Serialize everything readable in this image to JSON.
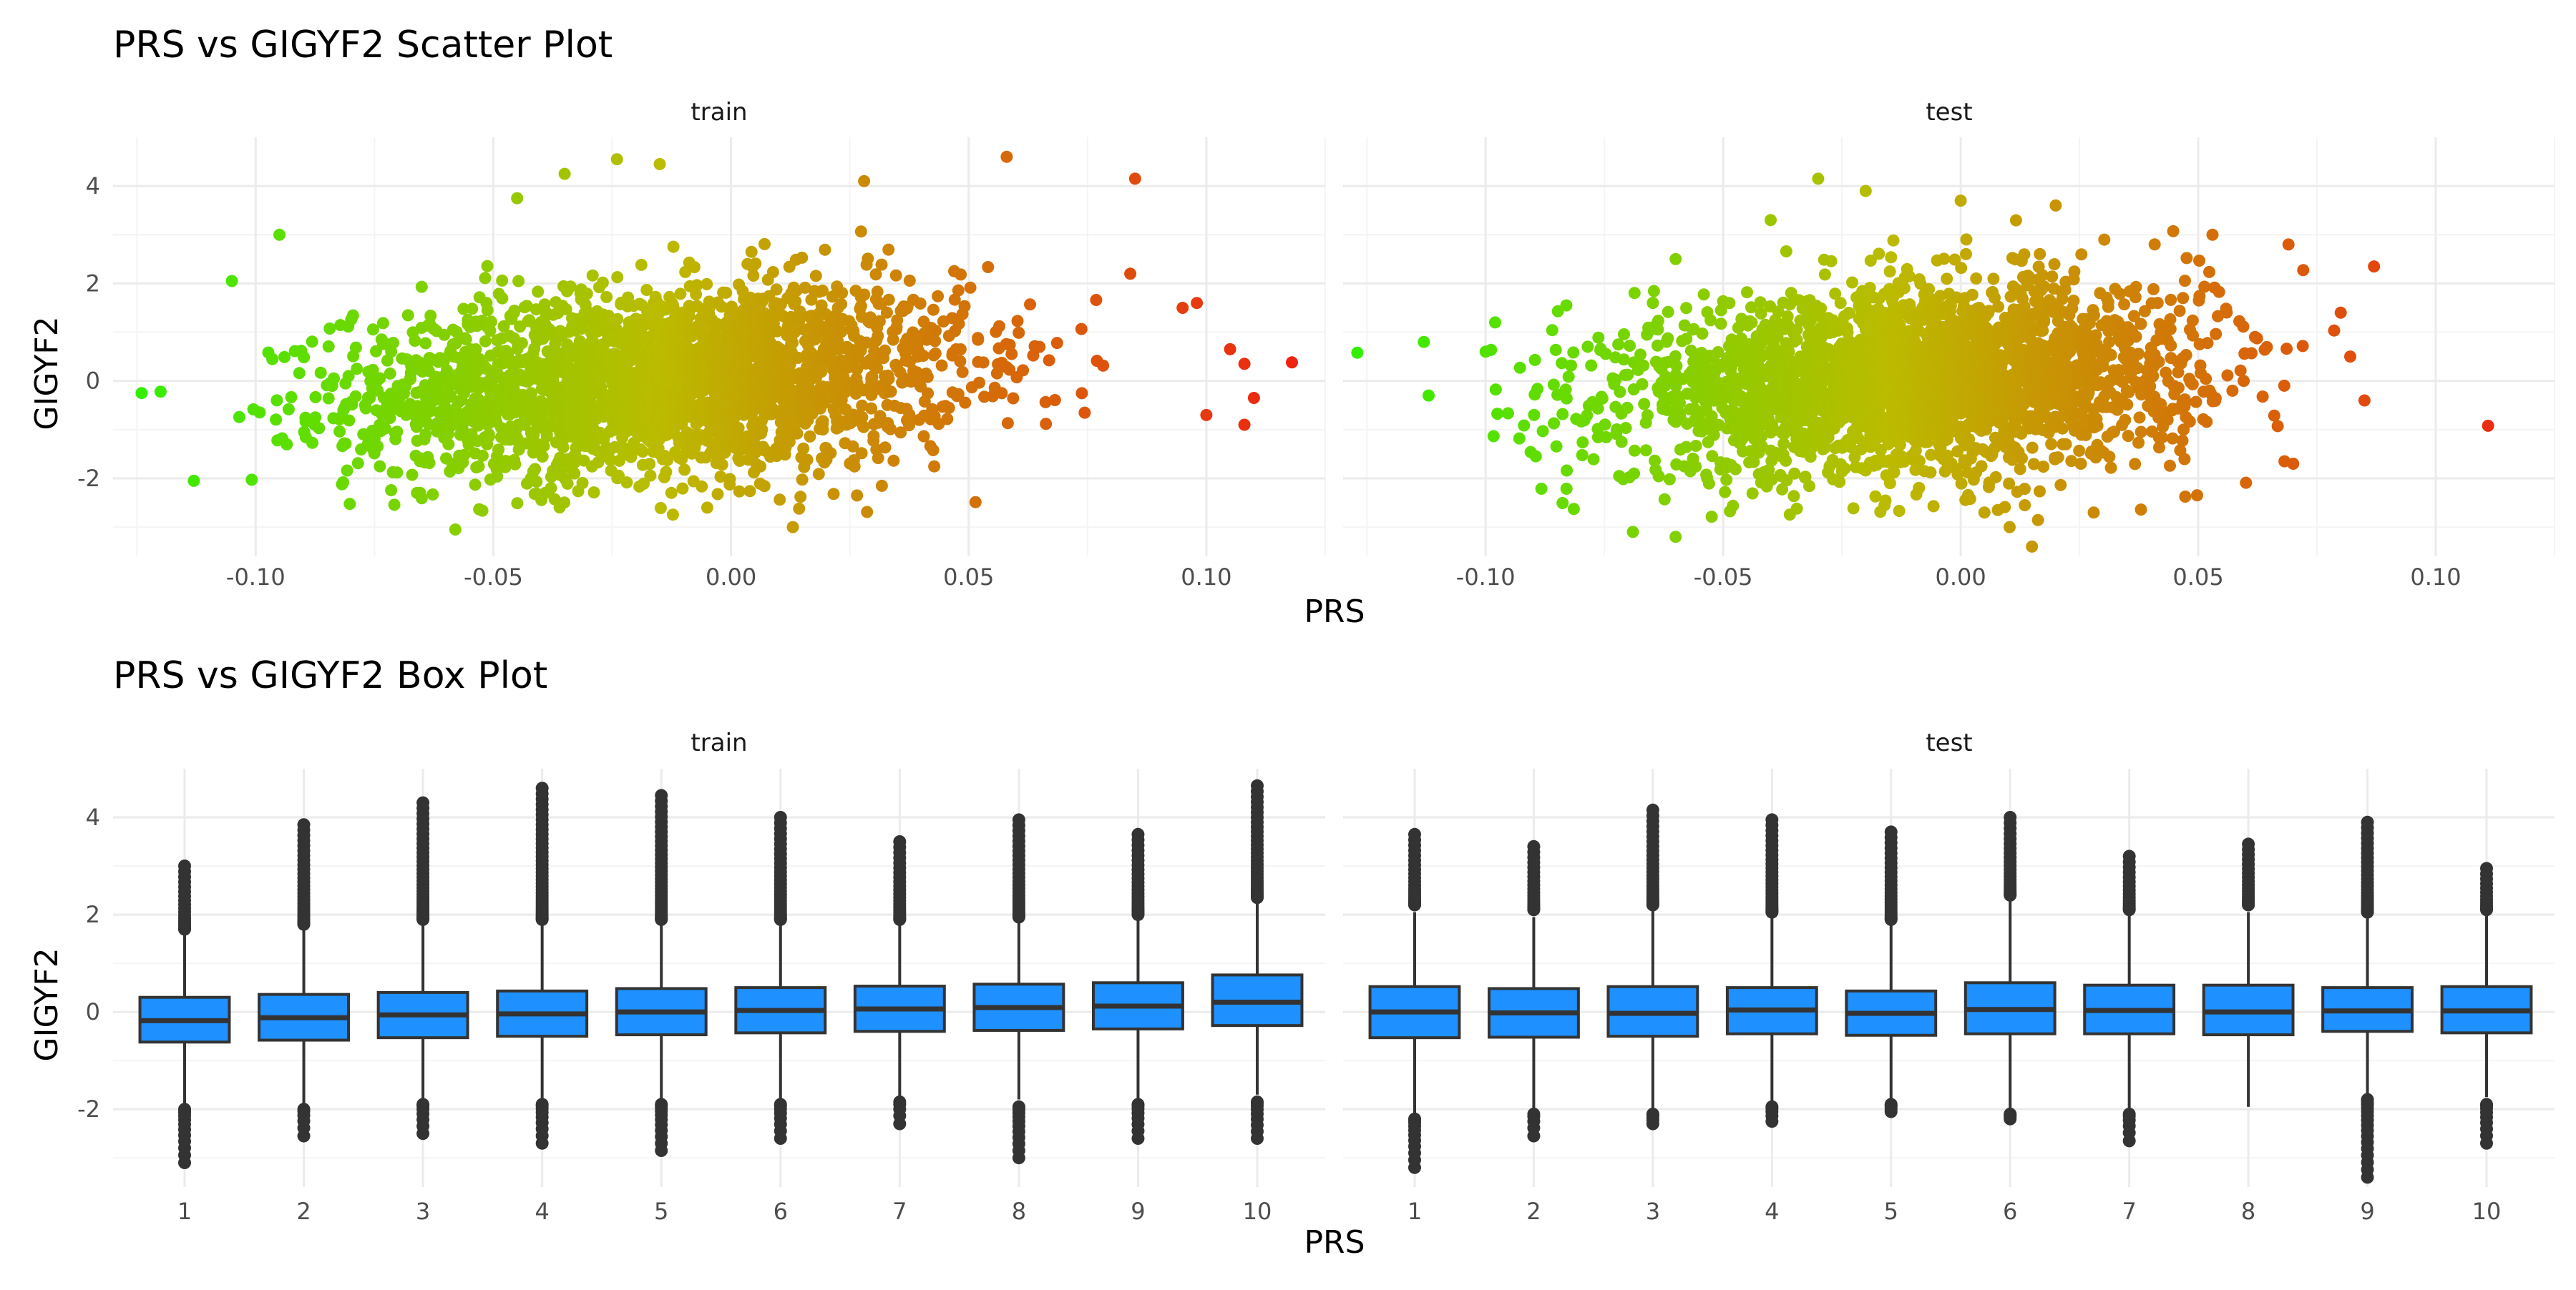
{
  "figure": {
    "scatter_title": "PRS vs GIGYF2 Scatter Plot",
    "box_title": "PRS vs GIGYF2 Box Plot"
  },
  "colors": {
    "low": "#33ee00",
    "mid": "#bbbb00",
    "high": "#ee2211",
    "box_fill": "#1e90ff",
    "box_stroke": "#333333",
    "grid_major": "#ebebeb",
    "grid_minor": "#f4f4f4",
    "text": "#000000",
    "tick_text": "#4d4d4d"
  },
  "chart_data": [
    {
      "type": "scatter",
      "title": "PRS vs GIGYF2 Scatter Plot",
      "xlabel": "PRS",
      "ylabel": "GIGYF2",
      "xlim": [
        -0.13,
        0.125
      ],
      "ylim": [
        -3.6,
        5.0
      ],
      "x_ticks": [
        -0.1,
        -0.05,
        0.0,
        0.05,
        0.1
      ],
      "x_tick_labels": [
        "-0.10",
        "-0.05",
        "0.00",
        "0.05",
        "0.10"
      ],
      "y_ticks": [
        -2,
        0,
        2,
        4
      ],
      "y_tick_labels": [
        "-2",
        "0",
        "2",
        "4"
      ],
      "color_scale": "gradient by PRS (green to red)",
      "grid": true,
      "facets": [
        {
          "label": "train",
          "x_center": -0.015,
          "x_sd": 0.032,
          "y_sd": 0.95,
          "core_halfwidth_x": 0.075,
          "core_halfwidth_y": 1.6,
          "extreme_points": [
            [
              -0.124,
              -0.25
            ],
            [
              -0.12,
              -0.22
            ],
            [
              -0.113,
              -2.05
            ],
            [
              -0.105,
              2.05
            ],
            [
              -0.095,
              3.0
            ],
            [
              -0.058,
              -3.05
            ],
            [
              -0.045,
              3.75
            ],
            [
              -0.035,
              4.25
            ],
            [
              -0.024,
              4.55
            ],
            [
              -0.015,
              4.45
            ],
            [
              -0.005,
              -2.6
            ],
            [
              0.013,
              -3.0
            ],
            [
              0.028,
              4.1
            ],
            [
              0.058,
              4.6
            ],
            [
              0.085,
              4.15
            ],
            [
              0.084,
              2.2
            ],
            [
              0.095,
              1.5
            ],
            [
              0.098,
              1.6
            ],
            [
              0.1,
              -0.7
            ],
            [
              0.105,
              0.65
            ],
            [
              0.108,
              -0.9
            ],
            [
              0.11,
              -0.35
            ],
            [
              0.108,
              0.35
            ],
            [
              0.118,
              0.38
            ]
          ]
        },
        {
          "label": "test",
          "x_center": -0.01,
          "x_sd": 0.03,
          "y_sd": 0.95,
          "core_halfwidth_x": 0.072,
          "core_halfwidth_y": 1.5,
          "extreme_points": [
            [
              -0.127,
              0.58
            ],
            [
              -0.113,
              0.8
            ],
            [
              -0.112,
              -0.3
            ],
            [
              -0.1,
              0.6
            ],
            [
              -0.098,
              1.2
            ],
            [
              -0.083,
              1.55
            ],
            [
              -0.069,
              -3.1
            ],
            [
              -0.06,
              -3.2
            ],
            [
              -0.06,
              2.5
            ],
            [
              -0.04,
              3.3
            ],
            [
              -0.03,
              4.15
            ],
            [
              -0.02,
              3.9
            ],
            [
              0.0,
              3.7
            ],
            [
              0.005,
              -2.7
            ],
            [
              0.02,
              3.6
            ],
            [
              0.015,
              -3.4
            ],
            [
              0.028,
              -2.7
            ],
            [
              0.053,
              3.0
            ],
            [
              0.069,
              2.8
            ],
            [
              0.07,
              -1.7
            ],
            [
              0.08,
              1.4
            ],
            [
              0.082,
              0.5
            ],
            [
              0.085,
              -0.4
            ],
            [
              0.087,
              2.35
            ],
            [
              0.111,
              -0.92
            ]
          ]
        }
      ]
    },
    {
      "type": "box",
      "title": "PRS vs GIGYF2 Box Plot",
      "xlabel": "PRS",
      "ylabel": "GIGYF2",
      "categories": [
        "1",
        "2",
        "3",
        "4",
        "5",
        "6",
        "7",
        "8",
        "9",
        "10"
      ],
      "ylim": [
        -3.6,
        5.0
      ],
      "y_ticks": [
        -2,
        0,
        2,
        4
      ],
      "y_tick_labels": [
        "-2",
        "0",
        "2",
        "4"
      ],
      "grid": true,
      "facets": [
        {
          "label": "train",
          "boxes": [
            {
              "q1": -0.62,
              "median": -0.18,
              "q3": 0.3,
              "whisker_low": -1.9,
              "whisker_high": 1.6,
              "outliers_high_from": 1.7,
              "outliers_high_to": 3.0,
              "outliers_low_from": -2.0,
              "outliers_low_to": -3.1
            },
            {
              "q1": -0.58,
              "median": -0.12,
              "q3": 0.36,
              "whisker_low": -1.9,
              "whisker_high": 1.7,
              "outliers_high_from": 1.8,
              "outliers_high_to": 3.85,
              "outliers_low_from": -2.0,
              "outliers_low_to": -2.55
            },
            {
              "q1": -0.53,
              "median": -0.06,
              "q3": 0.4,
              "whisker_low": -1.8,
              "whisker_high": 1.8,
              "outliers_high_from": 1.9,
              "outliers_high_to": 4.3,
              "outliers_low_from": -1.9,
              "outliers_low_to": -2.5
            },
            {
              "q1": -0.5,
              "median": -0.04,
              "q3": 0.43,
              "whisker_low": -1.8,
              "whisker_high": 1.8,
              "outliers_high_from": 1.9,
              "outliers_high_to": 4.6,
              "outliers_low_from": -1.9,
              "outliers_low_to": -2.7
            },
            {
              "q1": -0.47,
              "median": 0.0,
              "q3": 0.48,
              "whisker_low": -1.8,
              "whisker_high": 1.8,
              "outliers_high_from": 1.9,
              "outliers_high_to": 4.45,
              "outliers_low_from": -1.9,
              "outliers_low_to": -2.85
            },
            {
              "q1": -0.43,
              "median": 0.03,
              "q3": 0.5,
              "whisker_low": -1.8,
              "whisker_high": 1.8,
              "outliers_high_from": 1.9,
              "outliers_high_to": 4.0,
              "outliers_low_from": -1.9,
              "outliers_low_to": -2.6
            },
            {
              "q1": -0.4,
              "median": 0.06,
              "q3": 0.53,
              "whisker_low": -1.8,
              "whisker_high": 1.8,
              "outliers_high_from": 1.9,
              "outliers_high_to": 3.5,
              "outliers_low_from": -1.85,
              "outliers_low_to": -2.3
            },
            {
              "q1": -0.38,
              "median": 0.09,
              "q3": 0.57,
              "whisker_low": -1.8,
              "whisker_high": 1.85,
              "outliers_high_from": 1.95,
              "outliers_high_to": 3.95,
              "outliers_low_from": -1.95,
              "outliers_low_to": -3.0
            },
            {
              "q1": -0.35,
              "median": 0.12,
              "q3": 0.6,
              "whisker_low": -1.8,
              "whisker_high": 1.9,
              "outliers_high_from": 2.0,
              "outliers_high_to": 3.65,
              "outliers_low_from": -1.9,
              "outliers_low_to": -2.6
            },
            {
              "q1": -0.28,
              "median": 0.2,
              "q3": 0.76,
              "whisker_low": -1.7,
              "whisker_high": 2.25,
              "outliers_high_from": 2.35,
              "outliers_high_to": 4.65,
              "outliers_low_from": -1.85,
              "outliers_low_to": -2.6
            }
          ]
        },
        {
          "label": "test",
          "boxes": [
            {
              "q1": -0.53,
              "median": 0.0,
              "q3": 0.52,
              "whisker_low": -2.1,
              "whisker_high": 2.05,
              "outliers_high_from": 2.2,
              "outliers_high_to": 3.65,
              "outliers_low_from": -2.2,
              "outliers_low_to": -3.2
            },
            {
              "q1": -0.52,
              "median": -0.02,
              "q3": 0.48,
              "whisker_low": -2.0,
              "whisker_high": 1.95,
              "outliers_high_from": 2.1,
              "outliers_high_to": 3.4,
              "outliers_low_from": -2.1,
              "outliers_low_to": -2.55
            },
            {
              "q1": -0.5,
              "median": -0.03,
              "q3": 0.52,
              "whisker_low": -2.0,
              "whisker_high": 2.1,
              "outliers_high_from": 2.2,
              "outliers_high_to": 4.15,
              "outliers_low_from": -2.1,
              "outliers_low_to": -2.3
            },
            {
              "q1": -0.45,
              "median": 0.04,
              "q3": 0.5,
              "whisker_low": -1.9,
              "whisker_high": 1.95,
              "outliers_high_from": 2.05,
              "outliers_high_to": 3.95,
              "outliers_low_from": -1.95,
              "outliers_low_to": -2.25
            },
            {
              "q1": -0.48,
              "median": -0.03,
              "q3": 0.43,
              "whisker_low": -1.85,
              "whisker_high": 1.8,
              "outliers_high_from": 1.9,
              "outliers_high_to": 3.7,
              "outliers_low_from": -1.9,
              "outliers_low_to": -2.05
            },
            {
              "q1": -0.45,
              "median": 0.05,
              "q3": 0.6,
              "whisker_low": -2.0,
              "whisker_high": 2.3,
              "outliers_high_from": 2.4,
              "outliers_high_to": 4.0,
              "outliers_low_from": -2.1,
              "outliers_low_to": -2.2
            },
            {
              "q1": -0.45,
              "median": 0.03,
              "q3": 0.55,
              "whisker_low": -2.0,
              "whisker_high": 2.0,
              "outliers_high_from": 2.1,
              "outliers_high_to": 3.2,
              "outliers_low_from": -2.1,
              "outliers_low_to": -2.65
            },
            {
              "q1": -0.47,
              "median": 0.0,
              "q3": 0.55,
              "whisker_low": -1.95,
              "whisker_high": 2.05,
              "outliers_high_from": 2.2,
              "outliers_high_to": 3.45,
              "outliers_low_from": null,
              "outliers_low_to": null
            },
            {
              "q1": -0.4,
              "median": 0.02,
              "q3": 0.5,
              "whisker_low": -1.7,
              "whisker_high": 1.95,
              "outliers_high_from": 2.05,
              "outliers_high_to": 3.9,
              "outliers_low_from": -1.8,
              "outliers_low_to": -3.4
            },
            {
              "q1": -0.43,
              "median": 0.02,
              "q3": 0.52,
              "whisker_low": -1.75,
              "whisker_high": 2.0,
              "outliers_high_from": 2.1,
              "outliers_high_to": 2.95,
              "outliers_low_from": -1.9,
              "outliers_low_to": -2.7
            }
          ]
        }
      ]
    }
  ]
}
